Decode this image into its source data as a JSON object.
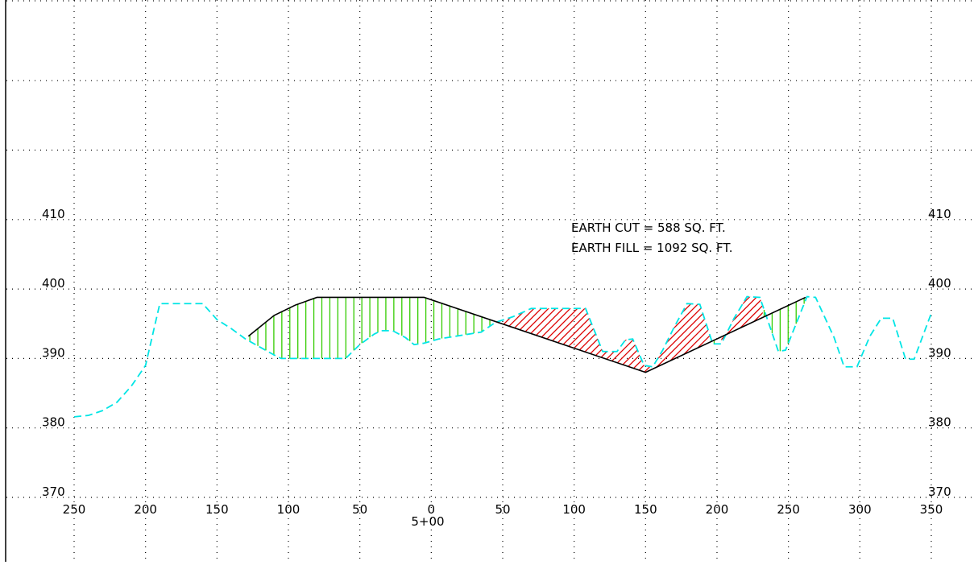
{
  "chart_data": {
    "type": "line",
    "title": "",
    "xlabel": "5+00",
    "ylabel": "",
    "xlim": [
      -250,
      350
    ],
    "ylim": [
      370,
      440
    ],
    "grid": true,
    "x_ticks": [
      {
        "value": -250,
        "label": "250"
      },
      {
        "value": -200,
        "label": "200"
      },
      {
        "value": -150,
        "label": "150"
      },
      {
        "value": -100,
        "label": "100"
      },
      {
        "value": -50,
        "label": "50"
      },
      {
        "value": 0,
        "label": "0"
      },
      {
        "value": 50,
        "label": "50"
      },
      {
        "value": 100,
        "label": "100"
      },
      {
        "value": 150,
        "label": "150"
      },
      {
        "value": 200,
        "label": "200"
      },
      {
        "value": 250,
        "label": "250"
      },
      {
        "value": 300,
        "label": "300"
      },
      {
        "value": 350,
        "label": "350"
      }
    ],
    "y_ticks": [
      370,
      380,
      390,
      400,
      410
    ],
    "y_tick_labels": [
      "370",
      "380",
      "390",
      "400",
      "410"
    ],
    "grid_y_extra": [
      420,
      430
    ],
    "annotations": [
      "EARTH CUT = 588 SQ. FT.",
      "EARTH FILL = 1092 SQ. FT."
    ],
    "existing_ground": {
      "style": "dashed",
      "color": "#00e5e5",
      "points": [
        [
          -250,
          381.6
        ],
        [
          -240,
          381.8
        ],
        [
          -230,
          382.5
        ],
        [
          -220,
          383.7
        ],
        [
          -210,
          386.0
        ],
        [
          -200,
          389.0
        ],
        [
          -190,
          397.9
        ],
        [
          -160,
          397.9
        ],
        [
          -150,
          395.6
        ],
        [
          -140,
          394.3
        ],
        [
          -130,
          392.8
        ],
        [
          -110,
          390.5
        ],
        [
          -105,
          390.0
        ],
        [
          -60,
          390.0
        ],
        [
          -50,
          392.0
        ],
        [
          -40,
          393.5
        ],
        [
          -35,
          394.0
        ],
        [
          -27,
          394.0
        ],
        [
          -18,
          393.0
        ],
        [
          -12,
          392.0
        ],
        [
          -5,
          392.2
        ],
        [
          5,
          392.8
        ],
        [
          35,
          393.8
        ],
        [
          45,
          395.2
        ],
        [
          57,
          396.0
        ],
        [
          70,
          397.2
        ],
        [
          108,
          397.2
        ],
        [
          120,
          391.0
        ],
        [
          130,
          391.0
        ],
        [
          136,
          392.7
        ],
        [
          141,
          392.8
        ],
        [
          149,
          389.0
        ],
        [
          155,
          388.8
        ],
        [
          162,
          391.2
        ],
        [
          170,
          394.5
        ],
        [
          179,
          397.9
        ],
        [
          188,
          397.8
        ],
        [
          197,
          392.1
        ],
        [
          203,
          392.1
        ],
        [
          212,
          395.8
        ],
        [
          221,
          398.9
        ],
        [
          230,
          398.8
        ],
        [
          243,
          391.0
        ],
        [
          248,
          391.2
        ],
        [
          263,
          398.9
        ],
        [
          269,
          398.8
        ],
        [
          282,
          393.0
        ],
        [
          289,
          388.8
        ],
        [
          298,
          388.8
        ],
        [
          307,
          393.2
        ],
        [
          315,
          395.8
        ],
        [
          323,
          395.8
        ],
        [
          332,
          389.9
        ],
        [
          338,
          389.9
        ],
        [
          350,
          396.5
        ]
      ]
    },
    "design_template": {
      "style": "solid",
      "color": "#000000",
      "points": [
        [
          -128,
          393.2
        ],
        [
          -110,
          396.2
        ],
        [
          -95,
          397.7
        ],
        [
          -80,
          398.8
        ],
        [
          -5,
          398.8
        ],
        [
          150,
          388.0
        ],
        [
          262,
          398.8
        ]
      ]
    },
    "fill_regions": [
      {
        "color": "#33cc00",
        "x_start": -128,
        "x_end": 45
      },
      {
        "color": "#33cc00",
        "x_start": 197,
        "x_end": 203
      },
      {
        "color": "#33cc00",
        "x_start": 232,
        "x_end": 262
      }
    ],
    "cut_regions": [
      {
        "color": "#dd0000",
        "x_start": 45,
        "x_end": 197
      },
      {
        "color": "#dd0000",
        "x_start": 203,
        "x_end": 232
      }
    ]
  }
}
